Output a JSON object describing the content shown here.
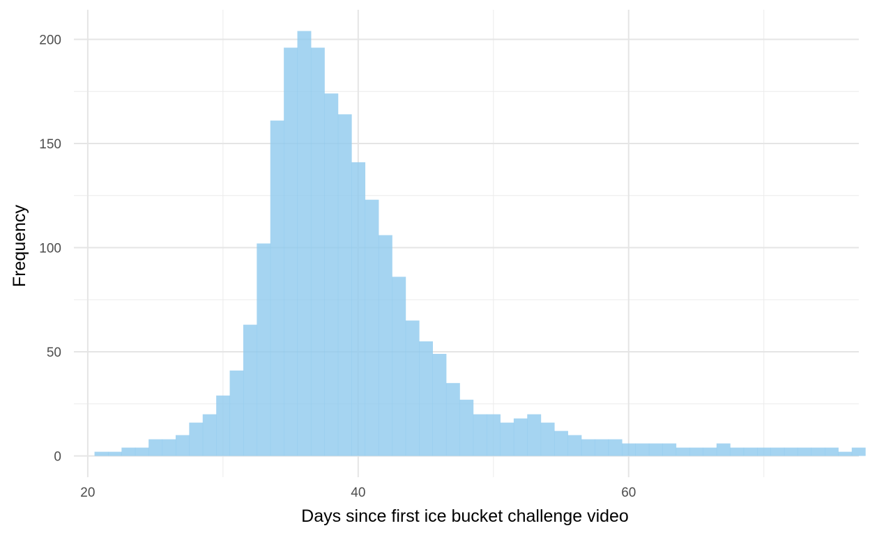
{
  "chart_data": {
    "type": "bar",
    "subtype": "histogram",
    "xlabel": "Days since first ice bucket challenge video",
    "ylabel": "Frequency",
    "xlim": [
      18.975,
      77.025
    ],
    "ylim": [
      -10.2,
      214.2
    ],
    "x_ticks": [
      20,
      40,
      60
    ],
    "y_ticks": [
      0,
      50,
      100,
      150,
      200
    ],
    "grid": true,
    "bin_width": 1,
    "bin_start": 20.5,
    "values": [
      2,
      2,
      4,
      4,
      8,
      8,
      10,
      16,
      20,
      29,
      41,
      63,
      102,
      161,
      196,
      204,
      196,
      174,
      164,
      141,
      123,
      106,
      86,
      65,
      55,
      49,
      35,
      27,
      20,
      20,
      16,
      18,
      20,
      16,
      12,
      10,
      8,
      8,
      8,
      6,
      6,
      6,
      6,
      4,
      4,
      4,
      6,
      4,
      4,
      4,
      4,
      4,
      4,
      4,
      4,
      2,
      4
    ],
    "fill_color": "#8ec9ee",
    "fill_opacity": 0.8
  }
}
